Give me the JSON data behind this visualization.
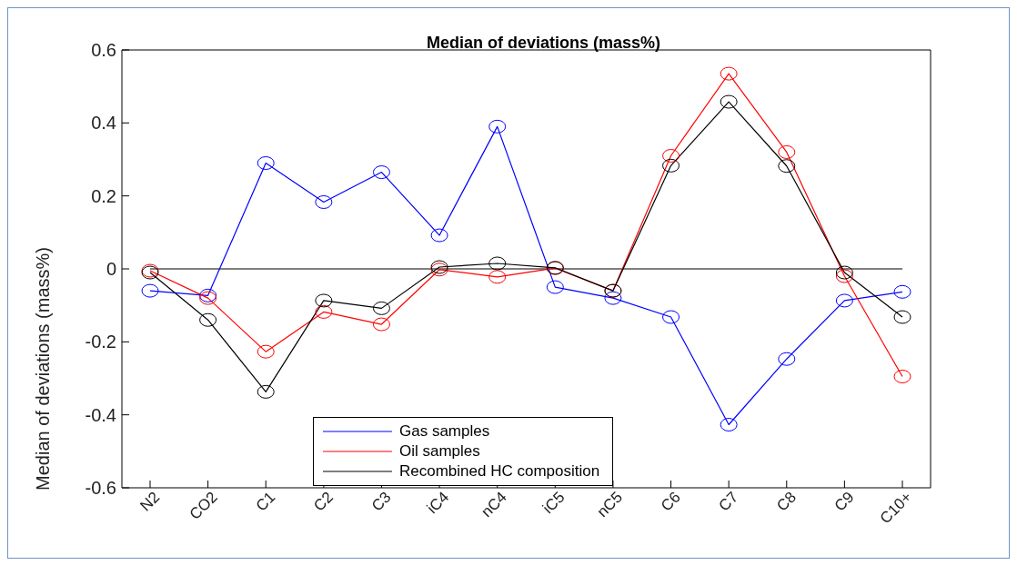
{
  "chart_data": {
    "type": "line",
    "title": "Median of deviations (mass%)",
    "ylabel": "Median of deviations (mass%)",
    "categories": [
      "N2",
      "CO2",
      "C1",
      "C2",
      "C3",
      "iC4",
      "nC4",
      "iC5",
      "nC5",
      "C6",
      "C7",
      "C8",
      "C9",
      "C10+"
    ],
    "series": [
      {
        "name": "Gas samples",
        "color": "#0000ff",
        "values": [
          -0.06,
          -0.073,
          0.29,
          0.183,
          0.265,
          0.092,
          0.39,
          -0.05,
          -0.08,
          -0.132,
          -0.427,
          -0.247,
          -0.087,
          -0.063
        ]
      },
      {
        "name": "Oil samples",
        "color": "#ff0000",
        "values": [
          -0.005,
          -0.08,
          -0.227,
          -0.118,
          -0.152,
          -0.002,
          -0.022,
          0.002,
          -0.06,
          0.31,
          0.535,
          0.32,
          -0.02,
          -0.295
        ]
      },
      {
        "name": "Recombined HC composition",
        "color": "#000000",
        "values": [
          -0.01,
          -0.14,
          -0.337,
          -0.087,
          -0.108,
          0.005,
          0.015,
          0.003,
          -0.06,
          0.283,
          0.458,
          0.282,
          -0.01,
          -0.132
        ]
      }
    ],
    "ylim": [
      -0.6,
      0.6
    ],
    "yticks": [
      -0.6,
      -0.4,
      -0.2,
      0,
      0.2,
      0.4,
      0.6
    ],
    "ref_lines": [
      {
        "axis": "y",
        "value": 0,
        "color": "#000000"
      }
    ],
    "grid": false,
    "legend": "bottom",
    "marker": "circle",
    "line_style": "solid"
  }
}
